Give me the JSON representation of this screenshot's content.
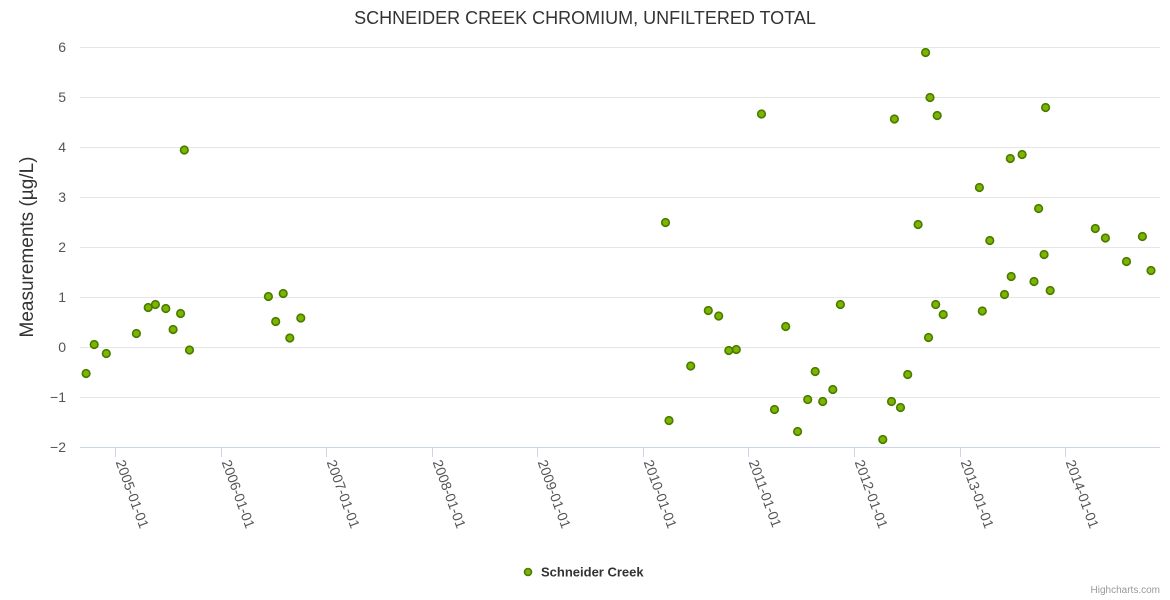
{
  "chart_data": {
    "type": "scatter",
    "title": "SCHNEIDER CREEK CHROMIUM, UNFILTERED TOTAL",
    "xlabel": "",
    "ylabel": "Measurements (µg/L)",
    "x_axis_type": "datetime",
    "xlim": [
      "2004-09-01",
      "2014-11-25"
    ],
    "ylim": [
      -2,
      6
    ],
    "y_ticks": [
      -2,
      -1,
      0,
      1,
      2,
      3,
      4,
      5,
      6
    ],
    "x_ticks": [
      "2005-01-01",
      "2006-01-01",
      "2007-01-01",
      "2008-01-01",
      "2009-01-01",
      "2010-01-01",
      "2011-01-01",
      "2012-01-01",
      "2013-01-01",
      "2014-01-01"
    ],
    "grid": true,
    "legend_position": "bottom-center",
    "credits": "Highcharts.com",
    "series": [
      {
        "name": "Schneider Creek",
        "color": "#7cb500",
        "edge_color": "#4a7a00",
        "points": [
          {
            "x": "2004-09-22",
            "y": -0.53
          },
          {
            "x": "2004-10-20",
            "y": 0.05
          },
          {
            "x": "2004-12-01",
            "y": -0.13
          },
          {
            "x": "2005-03-15",
            "y": 0.27
          },
          {
            "x": "2005-04-25",
            "y": 0.79
          },
          {
            "x": "2005-05-20",
            "y": 0.85
          },
          {
            "x": "2005-06-25",
            "y": 0.77
          },
          {
            "x": "2005-07-20",
            "y": 0.35
          },
          {
            "x": "2005-08-15",
            "y": 0.67
          },
          {
            "x": "2005-08-28",
            "y": 3.94
          },
          {
            "x": "2005-09-15",
            "y": -0.06
          },
          {
            "x": "2006-06-15",
            "y": 1.01
          },
          {
            "x": "2006-07-10",
            "y": 0.51
          },
          {
            "x": "2006-08-05",
            "y": 1.07
          },
          {
            "x": "2006-08-28",
            "y": 0.18
          },
          {
            "x": "2006-10-05",
            "y": 0.58
          },
          {
            "x": "2010-03-20",
            "y": 2.49
          },
          {
            "x": "2010-04-01",
            "y": -1.47
          },
          {
            "x": "2010-06-15",
            "y": -0.38
          },
          {
            "x": "2010-08-15",
            "y": 0.73
          },
          {
            "x": "2010-09-20",
            "y": 0.62
          },
          {
            "x": "2010-10-25",
            "y": -0.07
          },
          {
            "x": "2010-11-20",
            "y": -0.05
          },
          {
            "x": "2011-02-15",
            "y": 4.66
          },
          {
            "x": "2011-04-01",
            "y": -1.25
          },
          {
            "x": "2011-05-10",
            "y": 0.41
          },
          {
            "x": "2011-06-20",
            "y": -1.69
          },
          {
            "x": "2011-07-25",
            "y": -1.05
          },
          {
            "x": "2011-08-20",
            "y": -0.49
          },
          {
            "x": "2011-09-15",
            "y": -1.09
          },
          {
            "x": "2011-10-20",
            "y": -0.85
          },
          {
            "x": "2011-11-15",
            "y": 0.85
          },
          {
            "x": "2012-04-10",
            "y": -1.85
          },
          {
            "x": "2012-05-10",
            "y": -1.09
          },
          {
            "x": "2012-05-20",
            "y": 4.56
          },
          {
            "x": "2012-06-10",
            "y": -1.21
          },
          {
            "x": "2012-07-05",
            "y": -0.55
          },
          {
            "x": "2012-08-10",
            "y": 2.45
          },
          {
            "x": "2012-09-05",
            "y": 5.89
          },
          {
            "x": "2012-09-15",
            "y": 0.19
          },
          {
            "x": "2012-09-20",
            "y": 4.99
          },
          {
            "x": "2012-10-10",
            "y": 0.85
          },
          {
            "x": "2012-10-15",
            "y": 4.63
          },
          {
            "x": "2012-11-05",
            "y": 0.65
          },
          {
            "x": "2013-03-10",
            "y": 3.19
          },
          {
            "x": "2013-03-20",
            "y": 0.72
          },
          {
            "x": "2013-04-15",
            "y": 2.13
          },
          {
            "x": "2013-06-05",
            "y": 1.05
          },
          {
            "x": "2013-06-25",
            "y": 3.77
          },
          {
            "x": "2013-06-28",
            "y": 1.41
          },
          {
            "x": "2013-08-05",
            "y": 3.85
          },
          {
            "x": "2013-09-15",
            "y": 1.31
          },
          {
            "x": "2013-10-01",
            "y": 2.77
          },
          {
            "x": "2013-10-20",
            "y": 1.85
          },
          {
            "x": "2013-10-25",
            "y": 4.79
          },
          {
            "x": "2013-11-10",
            "y": 1.13
          },
          {
            "x": "2014-04-15",
            "y": 2.37
          },
          {
            "x": "2014-05-20",
            "y": 2.18
          },
          {
            "x": "2014-08-01",
            "y": 1.71
          },
          {
            "x": "2014-09-25",
            "y": 2.21
          },
          {
            "x": "2014-10-25",
            "y": 1.53
          }
        ]
      }
    ]
  }
}
